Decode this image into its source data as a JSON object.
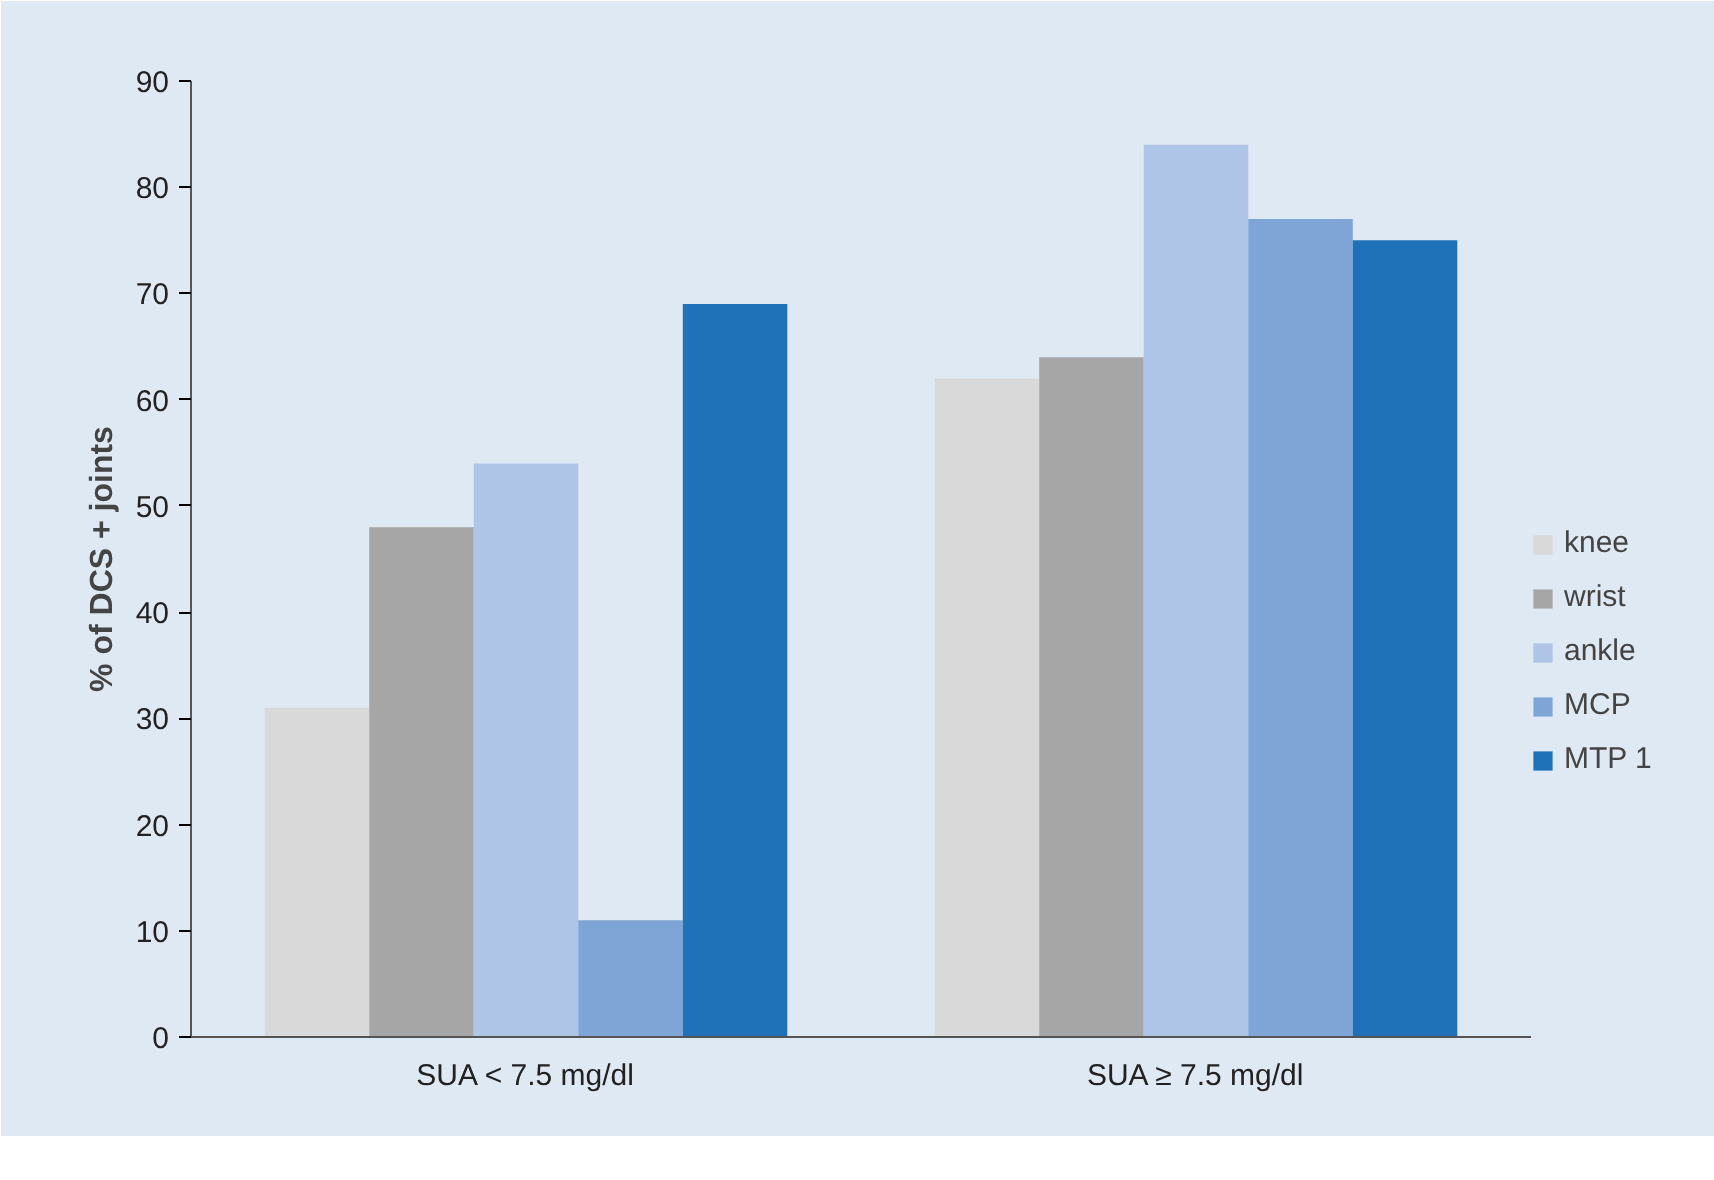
{
  "chart_data": {
    "type": "bar",
    "ylabel": "% of DCS + joints",
    "categories": [
      "SUA < 7.5 mg/dl",
      "SUA ≥ 7.5 mg/dl"
    ],
    "series": [
      {
        "name": "knee",
        "color": "#d9d9d9",
        "values": [
          31,
          62
        ]
      },
      {
        "name": "wrist",
        "color": "#a6a6a6",
        "values": [
          48,
          64
        ]
      },
      {
        "name": "ankle",
        "color": "#aec5e7",
        "values": [
          54,
          84
        ]
      },
      {
        "name": "MCP",
        "color": "#7ea5d5",
        "values": [
          11,
          77
        ]
      },
      {
        "name": "MTP 1",
        "color": "#1f72b8",
        "values": [
          69,
          75
        ]
      }
    ],
    "ylim": [
      0,
      90
    ],
    "yticks": [
      0,
      10,
      20,
      30,
      40,
      50,
      60,
      70,
      80,
      90
    ],
    "grid": false,
    "legend": "right"
  }
}
